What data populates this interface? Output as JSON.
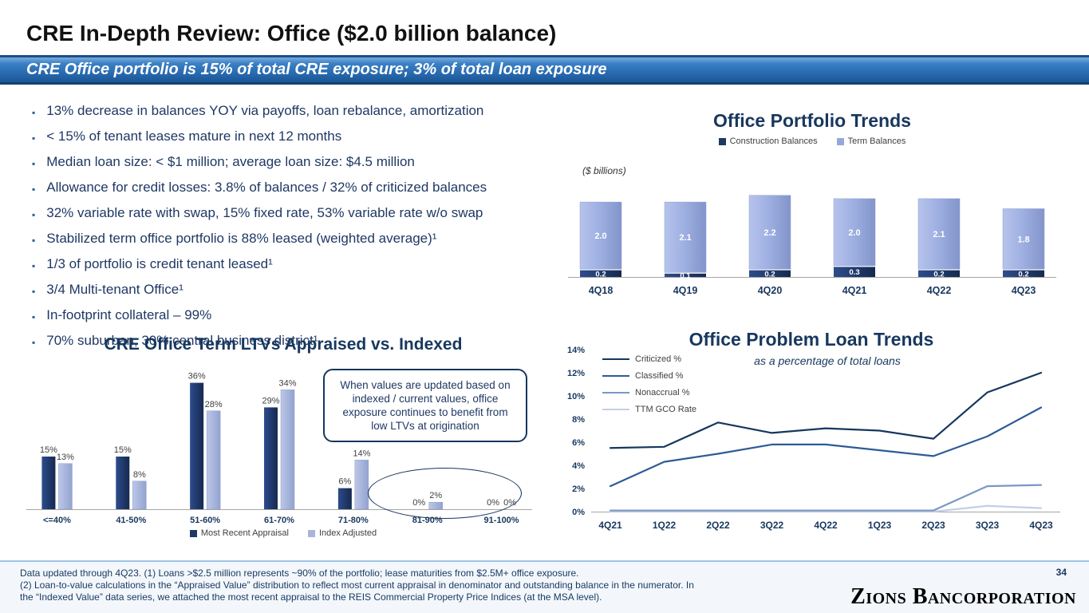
{
  "slide": {
    "title": "CRE In-Depth Review: Office ($2.0 billion balance)",
    "banner": "CRE Office portfolio is 15% of total CRE exposure; 3% of total loan exposure",
    "page_number": "34",
    "logo": "Zions Bancorporation"
  },
  "bullets": [
    "13% decrease in balances YOY via payoffs, loan rebalance, amortization",
    "< 15% of tenant leases mature in next 12 months",
    "Median loan size: < $1 million; average loan size: $4.5 million",
    "Allowance for credit losses: 3.8% of balances / 32% of criticized balances",
    "32% variable rate with swap, 15% fixed rate, 53% variable rate w/o swap",
    "Stabilized term office portfolio is 88% leased (weighted average)¹",
    "1/3 of portfolio is credit tenant leased¹",
    "3/4 Multi-tenant Office¹",
    "In-footprint collateral – 99%",
    "70% suburban, 30% central business district¹"
  ],
  "footnotes": [
    "Data updated through 4Q23. (1) Loans >$2.5 million represents ~90% of the portfolio; lease maturities from $2.5M+ office exposure.",
    "(2) Loan-to-value calculations in the “Appraised Value” distribution to reflect most current appraisal in denominator and outstanding balance in the numerator. In",
    "the “Indexed Value” data series, we attached the most recent appraisal to the REIS Commercial Property Price Indices (at the MSA level)."
  ],
  "chart_data": [
    {
      "type": "bar",
      "stacked": true,
      "title": "Office Portfolio Trends",
      "units_label": "($ billions)",
      "categories": [
        "4Q18",
        "4Q19",
        "4Q20",
        "4Q21",
        "4Q22",
        "4Q23"
      ],
      "series": [
        {
          "name": "Construction Balances",
          "color": "#1f3864",
          "values": [
            0.2,
            0.1,
            0.2,
            0.3,
            0.2,
            0.2
          ]
        },
        {
          "name": "Term Balances",
          "color": "#96a8da",
          "values": [
            2.0,
            2.1,
            2.2,
            2.0,
            2.1,
            1.8
          ]
        }
      ],
      "ylim": [
        0,
        2.6
      ],
      "legend_position": "top",
      "grid": false
    },
    {
      "type": "bar",
      "stacked": false,
      "title": "CRE Office Term LTVs Appraised vs. Indexed",
      "categories": [
        "<=40%",
        "41-50%",
        "51-60%",
        "61-70%",
        "71-80%",
        "81-90%",
        "91-100%"
      ],
      "series": [
        {
          "name": "Most Recent Appraisal",
          "color": "#1f3864",
          "values": [
            15,
            15,
            36,
            29,
            6,
            0,
            0
          ]
        },
        {
          "name": "Index Adjusted",
          "color": "#a9b6da",
          "values": [
            13,
            8,
            28,
            34,
            14,
            2,
            0
          ]
        }
      ],
      "value_suffix": "%",
      "ylim": [
        0,
        40
      ],
      "legend_position": "bottom",
      "grid": false,
      "annotation": "When values are updated based on indexed / current values, office exposure continues to benefit from low LTVs at origination",
      "highlight": "ellipse around 81-90% and 91-100% categories"
    },
    {
      "type": "line",
      "title": "Office Problem Loan Trends",
      "subtitle": "as a percentage of total loans",
      "x": [
        "4Q21",
        "1Q22",
        "2Q22",
        "3Q22",
        "4Q22",
        "1Q23",
        "2Q23",
        "3Q23",
        "4Q23"
      ],
      "series": [
        {
          "name": "Criticized %",
          "color": "#17375e",
          "values": [
            5.5,
            5.6,
            7.7,
            6.8,
            7.2,
            7.0,
            6.3,
            10.3,
            12.0
          ]
        },
        {
          "name": "Classified %",
          "color": "#2e5b97",
          "values": [
            2.2,
            4.3,
            5.0,
            5.8,
            5.8,
            5.3,
            4.8,
            6.5,
            9.0
          ]
        },
        {
          "name": "Nonaccrual %",
          "color": "#7b97c4",
          "values": [
            0.1,
            0.1,
            0.1,
            0.1,
            0.1,
            0.1,
            0.1,
            2.2,
            2.3
          ]
        },
        {
          "name": "TTM GCO Rate",
          "color": "#c3cfe5",
          "values": [
            0.0,
            0.0,
            0.0,
            0.0,
            0.0,
            0.0,
            0.0,
            0.5,
            0.3
          ]
        }
      ],
      "ylim": [
        0,
        14
      ],
      "ytick_step": 2,
      "ytick_suffix": "%",
      "legend_position": "top-left",
      "grid": false
    }
  ]
}
